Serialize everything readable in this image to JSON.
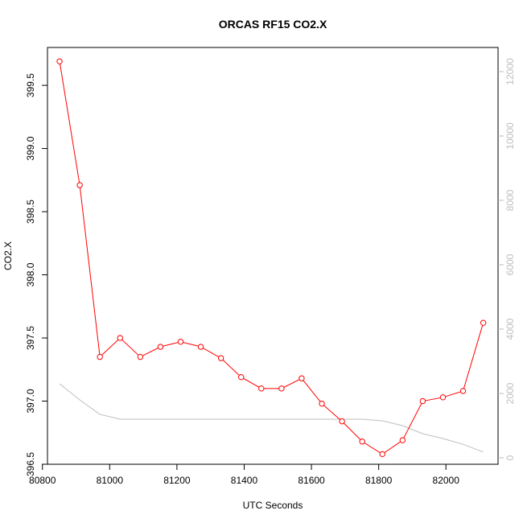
{
  "chart_data": {
    "type": "line",
    "title": "ORCAS RF15 CO2.X",
    "xlabel": "UTC Seconds",
    "ylabel": "CO2.X",
    "xlim": [
      80815,
      82155
    ],
    "ylim": [
      396.5,
      399.8
    ],
    "y2lim": [
      -200,
      12750
    ],
    "x_ticks": [
      80800,
      81000,
      81200,
      81400,
      81600,
      81800,
      82000
    ],
    "y_ticks": [
      396.5,
      397.0,
      397.5,
      398.0,
      398.5,
      399.0,
      399.5
    ],
    "y_tick_labels": [
      "396.5",
      "397.0",
      "397.5",
      "398.0",
      "398.5",
      "399.0",
      "399.5"
    ],
    "y2_ticks": [
      0,
      2000,
      4000,
      6000,
      8000,
      10000,
      12000
    ],
    "grid": false,
    "colors": {
      "co2": "#ff0000",
      "altitude": "#bebebe"
    },
    "series": [
      {
        "x": [
          80851,
          80911,
          80971,
          81031,
          81091,
          81151,
          81211,
          81271,
          81331,
          81391,
          81451,
          81511,
          81571,
          81631,
          81691,
          81751,
          81811,
          81871,
          81931,
          81991,
          82051,
          82111
        ],
        "values": [
          399.69,
          398.71,
          397.35,
          397.5,
          397.35,
          397.43,
          397.47,
          397.43,
          397.34,
          397.19,
          397.1,
          397.1,
          397.18,
          396.98,
          396.84,
          396.68,
          396.58,
          396.69,
          397.0,
          397.03,
          397.08,
          397.62
        ],
        "marker": "open-circle",
        "axis": "left"
      },
      {
        "x": [
          80851,
          80911,
          80971,
          81031,
          81091,
          81151,
          81211,
          81271,
          81331,
          81391,
          81451,
          81511,
          81571,
          81631,
          81691,
          81751,
          81811,
          81871,
          81931,
          81991,
          82051,
          82111
        ],
        "values": [
          2300,
          1800,
          1350,
          1200,
          1200,
          1200,
          1200,
          1200,
          1200,
          1200,
          1200,
          1200,
          1200,
          1200,
          1200,
          1200,
          1150,
          1000,
          750,
          600,
          420,
          180
        ],
        "marker": "none",
        "axis": "right"
      }
    ]
  }
}
